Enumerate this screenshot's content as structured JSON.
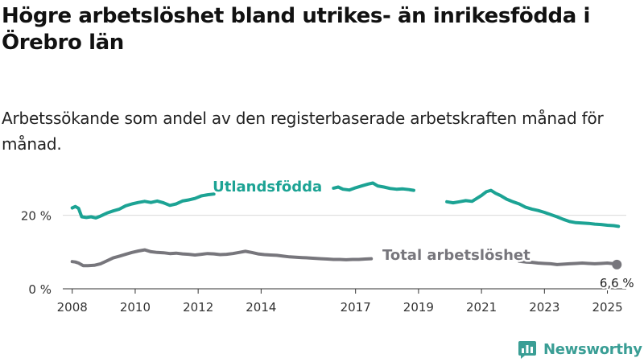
{
  "title": "Högre arbetslöshet bland utrikes- än inrikesfödda i Örebro län",
  "subtitle": "Arbetssökande som andel av den registerbaserade arbetskraften månad för månad.",
  "brand": {
    "name": "Newsworthy",
    "logo_icon": "bar-chart-logo-icon"
  },
  "colors": {
    "foreign_born": "#1ca394",
    "total": "#77767c",
    "grid": "#d9d9d9",
    "axis": "#333333",
    "brand": "#3a9e95"
  },
  "chart_data": {
    "type": "line",
    "x_unit": "year",
    "xlim": [
      2007.7,
      2025.6
    ],
    "ylim": [
      0,
      30
    ],
    "y_ticks": [
      {
        "value": 0,
        "label": "0 %"
      },
      {
        "value": 20,
        "label": "20 %"
      }
    ],
    "x_ticks": [
      {
        "value": 2008,
        "label": "2008"
      },
      {
        "value": 2010,
        "label": "2010"
      },
      {
        "value": 2012,
        "label": "2012"
      },
      {
        "value": 2014,
        "label": "2014"
      },
      {
        "value": 2017,
        "label": "2017"
      },
      {
        "value": 2019,
        "label": "2019"
      },
      {
        "value": 2021,
        "label": "2021"
      },
      {
        "value": 2023,
        "label": "2023"
      },
      {
        "value": 2025,
        "label": "2025"
      }
    ],
    "grid": "horizontal",
    "series": [
      {
        "name": "Utlandsfödda",
        "color_key": "foreign_born",
        "segments": [
          [
            [
              2008.0,
              22.0
            ],
            [
              2008.1,
              22.4
            ],
            [
              2008.2,
              21.9
            ],
            [
              2008.3,
              19.6
            ],
            [
              2008.45,
              19.4
            ],
            [
              2008.6,
              19.6
            ],
            [
              2008.75,
              19.3
            ],
            [
              2008.9,
              19.8
            ],
            [
              2009.1,
              20.6
            ],
            [
              2009.3,
              21.2
            ],
            [
              2009.5,
              21.7
            ],
            [
              2009.7,
              22.6
            ],
            [
              2009.9,
              23.1
            ],
            [
              2010.1,
              23.5
            ],
            [
              2010.3,
              23.8
            ],
            [
              2010.5,
              23.5
            ],
            [
              2010.7,
              23.9
            ],
            [
              2010.9,
              23.4
            ],
            [
              2011.1,
              22.7
            ],
            [
              2011.3,
              23.1
            ],
            [
              2011.5,
              23.9
            ],
            [
              2011.7,
              24.2
            ],
            [
              2011.9,
              24.6
            ],
            [
              2012.1,
              25.3
            ],
            [
              2012.3,
              25.6
            ],
            [
              2012.5,
              25.8
            ]
          ],
          [
            [
              2016.3,
              27.4
            ],
            [
              2016.45,
              27.7
            ],
            [
              2016.6,
              27.1
            ],
            [
              2016.8,
              26.9
            ],
            [
              2017.0,
              27.5
            ],
            [
              2017.2,
              28.0
            ],
            [
              2017.4,
              28.5
            ],
            [
              2017.55,
              28.8
            ],
            [
              2017.7,
              28.0
            ],
            [
              2017.9,
              27.7
            ],
            [
              2018.1,
              27.3
            ],
            [
              2018.3,
              27.1
            ],
            [
              2018.5,
              27.2
            ],
            [
              2018.7,
              27.0
            ],
            [
              2018.85,
              26.8
            ]
          ],
          [
            [
              2019.9,
              23.7
            ],
            [
              2020.1,
              23.4
            ],
            [
              2020.3,
              23.7
            ],
            [
              2020.5,
              24.0
            ],
            [
              2020.7,
              23.8
            ],
            [
              2020.85,
              24.6
            ],
            [
              2021.0,
              25.4
            ],
            [
              2021.15,
              26.4
            ],
            [
              2021.3,
              26.8
            ],
            [
              2021.45,
              26.0
            ],
            [
              2021.6,
              25.4
            ],
            [
              2021.8,
              24.4
            ],
            [
              2022.0,
              23.7
            ],
            [
              2022.2,
              23.1
            ],
            [
              2022.4,
              22.2
            ],
            [
              2022.6,
              21.7
            ],
            [
              2022.8,
              21.3
            ],
            [
              2023.0,
              20.8
            ],
            [
              2023.2,
              20.2
            ],
            [
              2023.4,
              19.6
            ],
            [
              2023.6,
              18.9
            ],
            [
              2023.8,
              18.3
            ],
            [
              2024.0,
              18.0
            ],
            [
              2024.2,
              17.9
            ],
            [
              2024.4,
              17.8
            ],
            [
              2024.6,
              17.6
            ],
            [
              2024.8,
              17.5
            ],
            [
              2025.0,
              17.3
            ],
            [
              2025.2,
              17.2
            ],
            [
              2025.35,
              17.0
            ]
          ]
        ]
      },
      {
        "name": "Total arbetslöshet",
        "color_key": "total",
        "segments": [
          [
            [
              2008.0,
              7.4
            ],
            [
              2008.1,
              7.3
            ],
            [
              2008.2,
              7.0
            ],
            [
              2008.35,
              6.3
            ],
            [
              2008.5,
              6.3
            ],
            [
              2008.7,
              6.4
            ],
            [
              2008.9,
              6.8
            ],
            [
              2009.1,
              7.6
            ],
            [
              2009.3,
              8.4
            ],
            [
              2009.5,
              8.9
            ],
            [
              2009.7,
              9.4
            ],
            [
              2009.9,
              9.9
            ],
            [
              2010.1,
              10.3
            ],
            [
              2010.3,
              10.6
            ],
            [
              2010.5,
              10.1
            ],
            [
              2010.7,
              9.9
            ],
            [
              2010.9,
              9.8
            ],
            [
              2011.1,
              9.6
            ],
            [
              2011.3,
              9.7
            ],
            [
              2011.5,
              9.5
            ],
            [
              2011.7,
              9.4
            ],
            [
              2011.9,
              9.2
            ],
            [
              2012.1,
              9.4
            ],
            [
              2012.3,
              9.6
            ],
            [
              2012.5,
              9.5
            ],
            [
              2012.7,
              9.3
            ],
            [
              2012.9,
              9.4
            ],
            [
              2013.1,
              9.6
            ],
            [
              2013.3,
              9.9
            ],
            [
              2013.5,
              10.2
            ],
            [
              2013.7,
              9.9
            ],
            [
              2013.9,
              9.5
            ],
            [
              2014.1,
              9.3
            ],
            [
              2014.3,
              9.2
            ],
            [
              2014.5,
              9.1
            ],
            [
              2014.7,
              8.9
            ],
            [
              2014.9,
              8.7
            ],
            [
              2015.1,
              8.6
            ],
            [
              2015.3,
              8.5
            ],
            [
              2015.5,
              8.4
            ],
            [
              2015.7,
              8.3
            ],
            [
              2015.9,
              8.2
            ],
            [
              2016.1,
              8.1
            ],
            [
              2016.3,
              8.0
            ],
            [
              2016.5,
              8.0
            ],
            [
              2016.7,
              7.9
            ],
            [
              2016.9,
              8.0
            ],
            [
              2017.1,
              8.0
            ],
            [
              2017.3,
              8.1
            ],
            [
              2017.5,
              8.2
            ]
          ],
          [
            [
              2022.2,
              7.5
            ],
            [
              2022.4,
              7.3
            ],
            [
              2022.6,
              7.2
            ],
            [
              2022.8,
              7.0
            ],
            [
              2023.0,
              6.9
            ],
            [
              2023.2,
              6.8
            ],
            [
              2023.4,
              6.6
            ],
            [
              2023.6,
              6.7
            ],
            [
              2023.8,
              6.8
            ],
            [
              2024.0,
              6.9
            ],
            [
              2024.2,
              7.0
            ],
            [
              2024.4,
              6.9
            ],
            [
              2024.6,
              6.8
            ],
            [
              2024.8,
              6.9
            ],
            [
              2025.0,
              7.0
            ],
            [
              2025.2,
              6.8
            ],
            [
              2025.3,
              6.6
            ]
          ]
        ]
      }
    ],
    "annotations": [
      {
        "text": "Utlandsfödda",
        "x": 2014.2,
        "y": 26.5,
        "color_key": "foreign_born"
      },
      {
        "text": "Total arbetslöshet",
        "x": 2020.2,
        "y": 7.9,
        "color_key": "total"
      }
    ],
    "endpoint": {
      "x": 2025.3,
      "y": 6.6,
      "label": "6,6 %"
    }
  }
}
